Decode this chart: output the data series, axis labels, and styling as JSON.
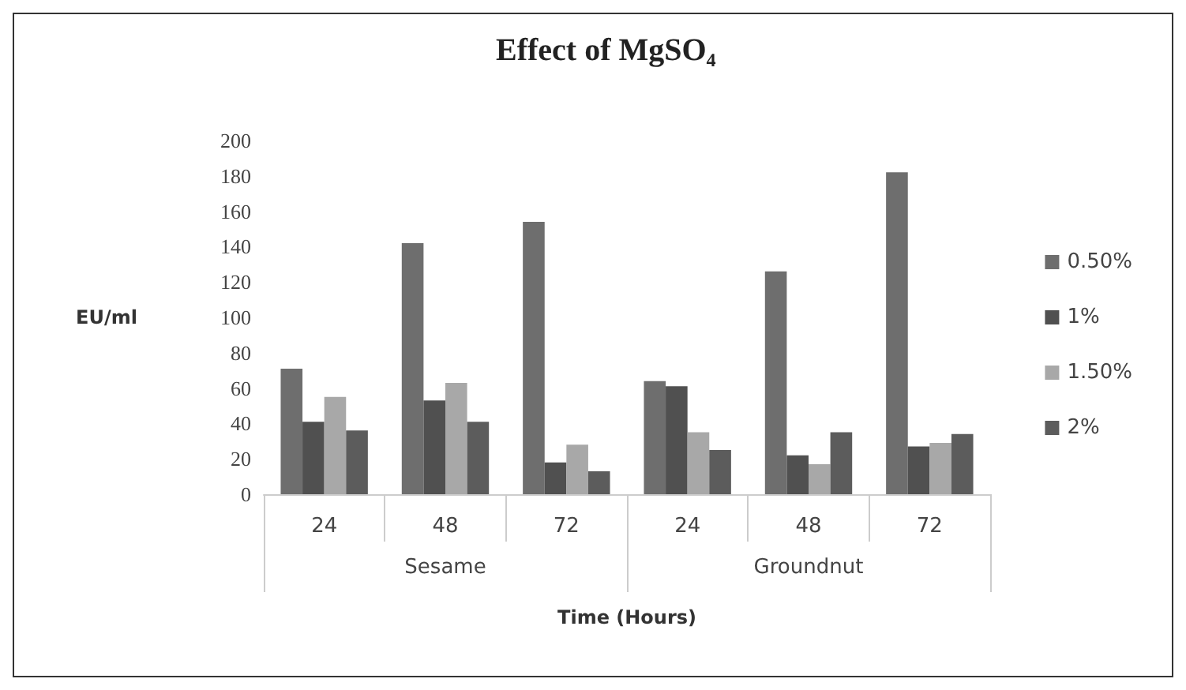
{
  "chart_data": {
    "type": "bar",
    "title": "Effect of MgSO₄",
    "xlabel": "Time (Hours)",
    "ylabel": "EU/ml",
    "categories": [
      "24",
      "48",
      "72",
      "24",
      "48",
      "72"
    ],
    "annotations": [
      "Sesame",
      "Groundnut"
    ],
    "series": [
      {
        "name": "0.50%",
        "color": "#6e6e6e",
        "values": [
          71,
          142,
          154,
          64,
          126,
          182
        ]
      },
      {
        "name": "1%",
        "color": "#505050",
        "values": [
          41,
          53,
          18,
          61,
          22,
          27
        ]
      },
      {
        "name": "1.50%",
        "color": "#a8a8a8",
        "values": [
          55,
          63,
          28,
          35,
          17,
          29
        ]
      },
      {
        "name": "2%",
        "color": "#5c5c5c",
        "values": [
          36,
          41,
          13,
          25,
          35,
          34
        ]
      }
    ],
    "ylim": [
      0,
      200
    ],
    "yticks": [
      0,
      20,
      40,
      60,
      80,
      100,
      120,
      140,
      160,
      180,
      200
    ],
    "grid": false,
    "legend": "right"
  }
}
